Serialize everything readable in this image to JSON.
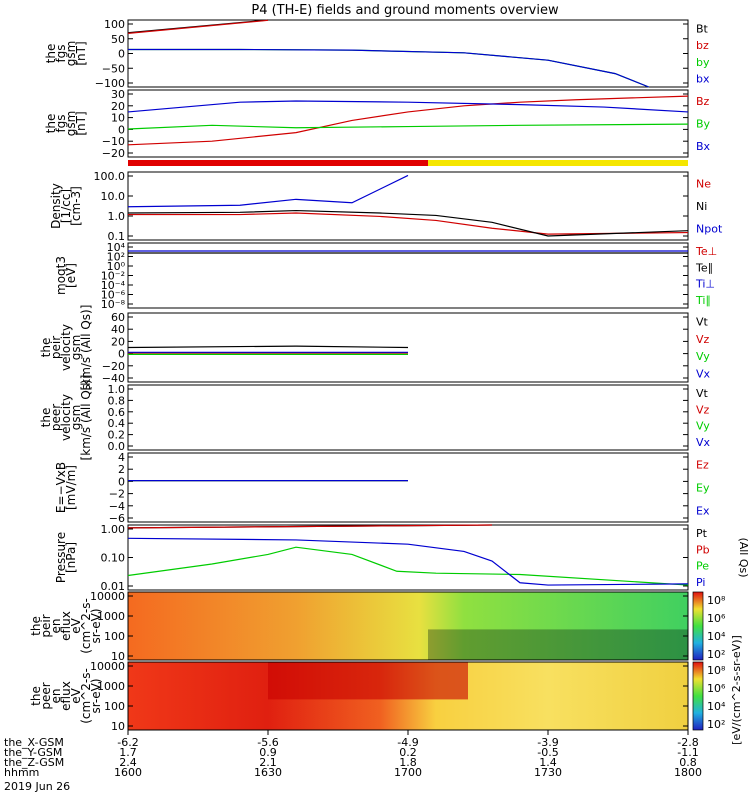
{
  "chart_data": {
    "type": "line",
    "title": "P4 (TH-E) fields and ground moments overview",
    "date_label": "2019 Jun 26",
    "time_axis": {
      "hhmm": [
        "1600",
        "1630",
        "1700",
        "1730",
        "1800"
      ],
      "rows": [
        {
          "label": "the_X-GSM",
          "values": [
            "-6.2",
            "-5.6",
            "-4.9",
            "-3.9",
            "-2.8"
          ]
        },
        {
          "label": "the_Y-GSM",
          "values": [
            "1.7",
            "0.9",
            "0.2",
            "-0.5",
            "-1.1"
          ]
        },
        {
          "label": "the_Z-GSM",
          "values": [
            "2.4",
            "2.1",
            "1.8",
            "1.4",
            "0.8"
          ]
        },
        {
          "label": "hhmm",
          "values": [
            "1600",
            "1630",
            "1700",
            "1730",
            "1800"
          ]
        }
      ]
    },
    "colorbar_label": "[eV/(cm^2-s-sr-eV)]",
    "colorbar_ticks": [
      "10⁸",
      "10⁶",
      "10⁴",
      "10²"
    ],
    "panels": [
      {
        "id": "fgs",
        "ylabel": [
          "the",
          "fgs",
          "gsm",
          "[nT]"
        ],
        "ylim": [
          -100,
          100
        ],
        "yticks": [
          "100",
          "50",
          "0",
          "−50",
          "−100"
        ],
        "legend": [
          {
            "t": "Bt",
            "c": "#000000"
          },
          {
            "t": "bz",
            "c": "#d00000"
          },
          {
            "t": "by",
            "c": "#00cc00"
          },
          {
            "t": "bx",
            "c": "#0000d0"
          }
        ]
      },
      {
        "id": "fgs-dsl",
        "ylabel": [
          "the",
          "fgs",
          "gsm",
          "[nT]"
        ],
        "ylim": [
          -25,
          30
        ],
        "yticks": [
          "30",
          "20",
          "10",
          "0",
          "−10",
          "−20"
        ],
        "legend": [
          {
            "t": "Bz",
            "c": "#d00000"
          },
          {
            "t": "By",
            "c": "#00cc00"
          },
          {
            "t": "Bx",
            "c": "#0000d0"
          }
        ]
      },
      {
        "id": "density",
        "ylabel": [
          "Density",
          "[1/cc]",
          "[cm-3]"
        ],
        "yticks": [
          "100.0",
          "10.0",
          "1.0",
          "0.1"
        ],
        "legend": [
          {
            "t": "Ne",
            "c": "#d00000"
          },
          {
            "t": "Ni",
            "c": "#000000"
          },
          {
            "t": "Npot",
            "c": "#0000d0"
          }
        ]
      },
      {
        "id": "temp",
        "ylabel": [
          "moqt3",
          "[eV]"
        ],
        "yticks": [
          "10⁴",
          "10²",
          "10⁰",
          "10⁻²",
          "10⁻⁴",
          "10⁻⁶",
          "10⁻⁸"
        ],
        "legend": [
          {
            "t": "Te⊥",
            "c": "#d00000"
          },
          {
            "t": "Te∥",
            "c": "#000000"
          },
          {
            "t": "Ti⊥",
            "c": "#0000d0"
          },
          {
            "t": "Ti∥",
            "c": "#00cc00"
          }
        ]
      },
      {
        "id": "peir-vel",
        "ylabel": [
          "the",
          "peir",
          "velocity",
          "gsm",
          "[km/s (All Qs)]"
        ],
        "ylim": [
          -40,
          60
        ],
        "yticks": [
          "60",
          "40",
          "20",
          "0",
          "−20",
          "−40"
        ],
        "legend": [
          {
            "t": "Vt",
            "c": "#000000"
          },
          {
            "t": "Vz",
            "c": "#d00000"
          },
          {
            "t": "Vy",
            "c": "#00cc00"
          },
          {
            "t": "Vx",
            "c": "#0000d0"
          }
        ]
      },
      {
        "id": "peer-vel",
        "ylabel": [
          "the",
          "peer",
          "velocity",
          "gsm",
          "[km/s (All Qs)]"
        ],
        "ylim": [
          0,
          1
        ],
        "yticks": [
          "1.0",
          "0.8",
          "0.6",
          "0.4",
          "0.2",
          "0.0"
        ],
        "legend": [
          {
            "t": "Vt",
            "c": "#000000"
          },
          {
            "t": "Vz",
            "c": "#d00000"
          },
          {
            "t": "Vy",
            "c": "#00cc00"
          },
          {
            "t": "Vx",
            "c": "#0000d0"
          }
        ]
      },
      {
        "id": "efield",
        "ylabel": [
          "E=−VxB",
          "[mV/m]"
        ],
        "ylim": [
          -6,
          4
        ],
        "yticks": [
          "4",
          "2",
          "0",
          "−2",
          "−4",
          "−6"
        ],
        "legend": [
          {
            "t": "Ez",
            "c": "#d00000"
          },
          {
            "t": "Ey",
            "c": "#00cc00"
          },
          {
            "t": "Ex",
            "c": "#0000d0"
          }
        ]
      },
      {
        "id": "pressure",
        "ylabel": [
          "Pressure",
          "[nPa]"
        ],
        "yticks": [
          "1.00",
          "0.10",
          "0.01"
        ],
        "legend": [
          {
            "t": "Pt",
            "c": "#000000"
          },
          {
            "t": "Pb",
            "c": "#d00000"
          },
          {
            "t": "Pe",
            "c": "#00cc00"
          },
          {
            "t": "Pi",
            "c": "#0000d0"
          }
        ],
        "side_note": "(All Qs)"
      },
      {
        "id": "peir-eflux",
        "ylabel": [
          "the",
          "peir",
          "en",
          "eflux",
          "eV",
          "(cm^2-s-",
          "sr-eV)"
        ],
        "yticks": [
          "10000",
          "1000",
          "100",
          "10"
        ]
      },
      {
        "id": "peer-eflux",
        "ylabel": [
          "the",
          "peer",
          "en",
          "eflux",
          "eV",
          "(cm^2-s-",
          "sr-eV)"
        ],
        "yticks": [
          "10000",
          "1000",
          "100",
          "10"
        ]
      }
    ],
    "series": {
      "fgs": [
        {
          "name": "Bt",
          "color": "#000000",
          "x": [
            0,
            0.25
          ],
          "y": [
            62,
            100
          ]
        },
        {
          "name": "bz",
          "color": "#d00000",
          "x": [
            0,
            0.25
          ],
          "y": [
            60,
            99
          ]
        },
        {
          "name": "by",
          "color": "#00cc00",
          "x": [
            0,
            0.2,
            0.4,
            0.6,
            0.75,
            0.87,
            0.93
          ],
          "y": [
            12,
            12,
            10,
            2,
            -20,
            -60,
            -100
          ]
        },
        {
          "name": "bx",
          "color": "#0000d0",
          "x": [
            0,
            0.2,
            0.4,
            0.6,
            0.75,
            0.87,
            0.93
          ],
          "y": [
            12,
            12,
            10,
            2,
            -20,
            -60,
            -100
          ]
        }
      ],
      "fgs-dsl": [
        {
          "name": "Bz",
          "color": "#d00000",
          "x": [
            0,
            0.15,
            0.3,
            0.4,
            0.5,
            0.6,
            0.7,
            0.8,
            1
          ],
          "y": [
            -15,
            -12,
            -5,
            5,
            12,
            17,
            20,
            22,
            25
          ]
        },
        {
          "name": "By",
          "color": "#00cc00",
          "x": [
            0,
            0.15,
            0.3,
            0.5,
            0.7,
            1
          ],
          "y": [
            -2,
            1,
            -1,
            0,
            1,
            2
          ]
        },
        {
          "name": "Bx",
          "color": "#0000d0",
          "x": [
            0,
            0.1,
            0.2,
            0.3,
            0.5,
            0.7,
            0.85,
            1
          ],
          "y": [
            12,
            16,
            20,
            21,
            20,
            18,
            16,
            12
          ]
        }
      ],
      "density": [
        {
          "name": "Ne",
          "color": "#d00000",
          "x": [
            0,
            0.2,
            0.3,
            0.45,
            0.55,
            0.65,
            0.75,
            1
          ],
          "y": [
            1,
            1,
            1.2,
            0.8,
            0.5,
            0.2,
            0.1,
            0.12
          ]
        },
        {
          "name": "Ni",
          "color": "#000000",
          "x": [
            0,
            0.2,
            0.3,
            0.45,
            0.55,
            0.65,
            0.75,
            1
          ],
          "y": [
            1.2,
            1.3,
            1.6,
            1.2,
            0.9,
            0.4,
            0.08,
            0.15
          ]
        },
        {
          "name": "Npot",
          "color": "#0000d0",
          "x": [
            0,
            0.2,
            0.3,
            0.4,
            0.45,
            0.5
          ],
          "y": [
            2.5,
            3,
            6,
            4,
            20,
            100
          ]
        }
      ],
      "peir-vel": [
        {
          "name": "Vt",
          "color": "#000000",
          "x": [
            0,
            0.3,
            0.5
          ],
          "y": [
            10,
            12,
            10
          ]
        },
        {
          "name": "Vz",
          "color": "#d00000",
          "x": [
            0,
            0.5
          ],
          "y": [
            2,
            2
          ]
        },
        {
          "name": "Vy",
          "color": "#00cc00",
          "x": [
            0,
            0.5
          ],
          "y": [
            0,
            0
          ]
        },
        {
          "name": "Vx",
          "color": "#0000d0",
          "x": [
            0,
            0.5
          ],
          "y": [
            3,
            3
          ]
        }
      ],
      "efield": [
        {
          "name": "Ez",
          "color": "#d00000",
          "x": [
            0,
            0.5
          ],
          "y": [
            0,
            0
          ]
        },
        {
          "name": "Ey",
          "color": "#00cc00",
          "x": [
            0,
            0.5
          ],
          "y": [
            0,
            0
          ]
        },
        {
          "name": "Ex",
          "color": "#0000d0",
          "x": [
            0,
            0.5
          ],
          "y": [
            0,
            0
          ]
        }
      ],
      "pressure": [
        {
          "name": "Pt",
          "color": "#000000",
          "x": [
            0,
            0.65
          ],
          "y": [
            1.9,
            6.5
          ]
        },
        {
          "name": "Pb",
          "color": "#d00000",
          "x": [
            0,
            0.65
          ],
          "y": [
            1.9,
            6.5
          ]
        },
        {
          "name": "Pe",
          "color": "#00cc00",
          "x": [
            0,
            0.15,
            0.25,
            0.3,
            0.4,
            0.48,
            0.55,
            0.7,
            1
          ],
          "y": [
            0.02,
            0.06,
            0.15,
            0.3,
            0.15,
            0.03,
            0.025,
            0.022,
            0.008
          ]
        },
        {
          "name": "Pi",
          "color": "#0000d0",
          "x": [
            0,
            0.3,
            0.5,
            0.6,
            0.65,
            0.7,
            0.75,
            1
          ],
          "y": [
            0.7,
            0.6,
            0.4,
            0.2,
            0.08,
            0.01,
            0.008,
            0.009
          ]
        }
      ]
    }
  }
}
